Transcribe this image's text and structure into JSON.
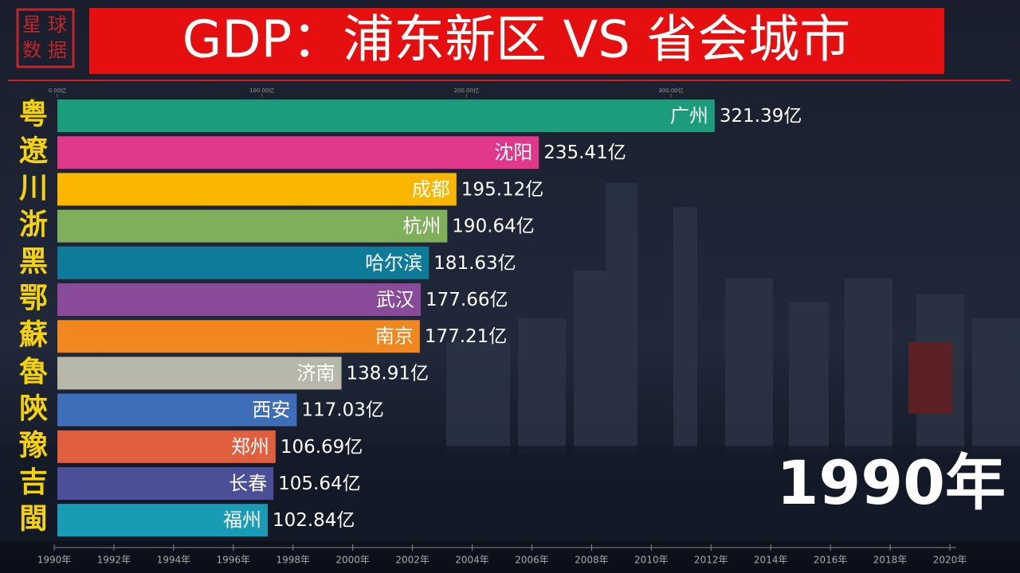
{
  "logo": [
    "星",
    "球",
    "数",
    "据"
  ],
  "chart_data": {
    "type": "bar",
    "orientation": "horizontal",
    "title": "GDP：浦东新区 VS 省会城市",
    "categories": [
      "广州",
      "沈阳",
      "成都",
      "杭州",
      "哈尔滨",
      "武汉",
      "南京",
      "济南",
      "西安",
      "郑州",
      "长春",
      "福州"
    ],
    "province_labels": [
      "粤",
      "遼",
      "川",
      "浙",
      "黑",
      "鄂",
      "蘇",
      "魯",
      "陝",
      "豫",
      "吉",
      "閩"
    ],
    "values": [
      321.39,
      235.41,
      195.12,
      190.64,
      181.63,
      177.66,
      177.21,
      138.91,
      117.03,
      106.69,
      105.64,
      102.84
    ],
    "value_labels": [
      "321.39亿",
      "235.41亿",
      "195.12亿",
      "190.64亿",
      "181.63亿",
      "177.66亿",
      "177.21亿",
      "138.91亿",
      "117.03亿",
      "106.69亿",
      "105.64亿",
      "102.84亿"
    ],
    "colors": [
      "#1b9c7c",
      "#e0388a",
      "#fbb700",
      "#7faf5a",
      "#0e7c99",
      "#8a4a9a",
      "#f0871f",
      "#b8b8aa",
      "#3e6eb8",
      "#e05f3f",
      "#4b4f98",
      "#1a9bb5"
    ],
    "xlim": [
      0,
      450
    ],
    "xticks": [
      {
        "value": 0,
        "label": "0.00亿"
      },
      {
        "value": 100,
        "label": "100.00亿"
      },
      {
        "value": 200,
        "label": "200.00亿"
      },
      {
        "value": 300,
        "label": "300.00亿"
      }
    ],
    "timeline": [
      "1990年",
      "1992年",
      "1994年",
      "1996年",
      "1998年",
      "2000年",
      "2002年",
      "2004年",
      "2006年",
      "2008年",
      "2010年",
      "2012年",
      "2014年",
      "2016年",
      "2018年",
      "2020年"
    ],
    "year_label": "1990年"
  }
}
